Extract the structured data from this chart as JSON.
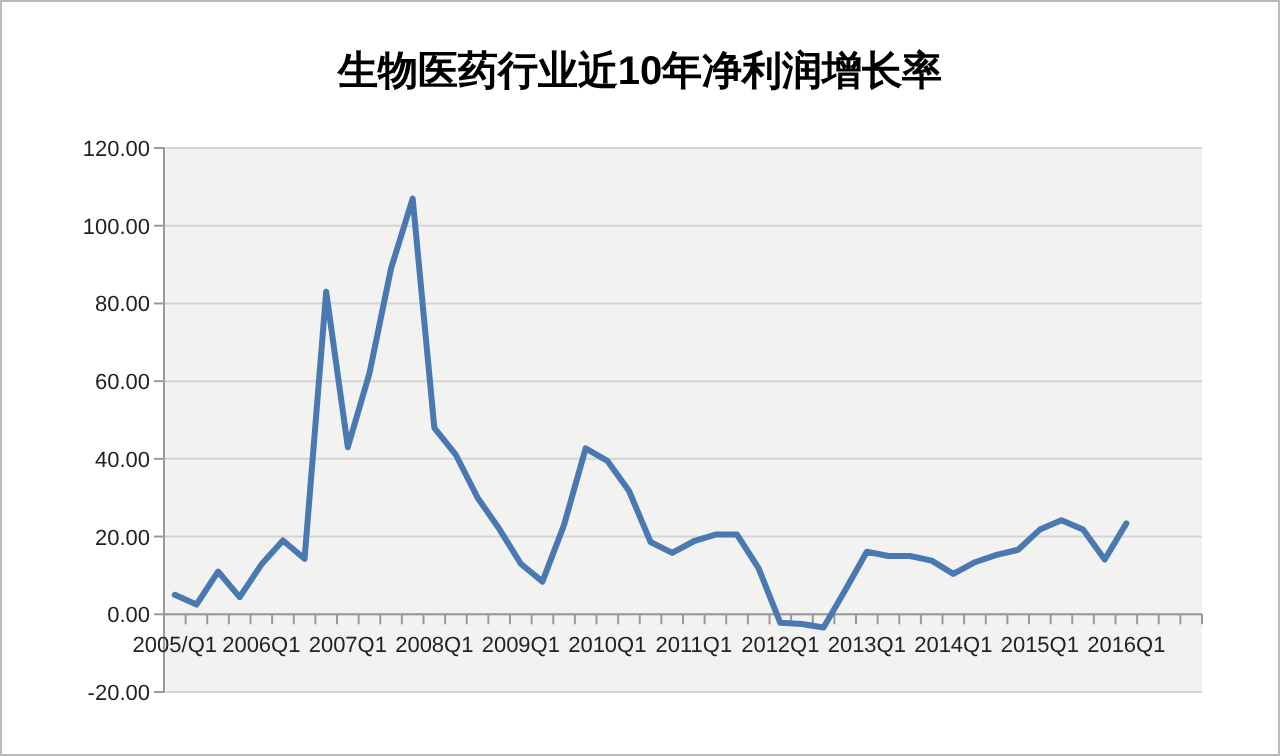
{
  "chart_data": {
    "type": "line",
    "title": "生物医药行业近10年净利润增长率",
    "categories": [
      "2005/Q1",
      null,
      null,
      null,
      "2006Q1",
      null,
      null,
      null,
      "2007Q1",
      null,
      null,
      null,
      "2008Q1",
      null,
      null,
      null,
      "2009Q1",
      null,
      null,
      null,
      "2010Q1",
      null,
      null,
      null,
      "2011Q1",
      null,
      null,
      null,
      "2012Q1",
      null,
      null,
      null,
      "2013Q1",
      null,
      null,
      null,
      "2014Q1",
      null,
      null,
      null,
      "2015Q1",
      null,
      null,
      null,
      "2016Q1",
      null,
      null,
      null
    ],
    "series": [
      {
        "color": "#4a78b0",
        "values": [
          5.0,
          2.5,
          11,
          4.4,
          12.8,
          19,
          14.3,
          83,
          43,
          62,
          89,
          107,
          48,
          41,
          30,
          22,
          13,
          8.4,
          23,
          42.7,
          39.5,
          31.8,
          18.6,
          15.8,
          18.8,
          20.5,
          20.5,
          11.8,
          -2.2,
          -2.5,
          -3.4,
          6.2,
          16.1,
          15,
          15,
          13.8,
          10.4,
          13.4,
          15.3,
          16.6,
          21.8,
          24.2,
          21.8,
          14.1,
          23.4,
          null,
          null,
          null
        ]
      }
    ],
    "ylim": [
      -20,
      120
    ],
    "yticks": [
      {
        "value": -20,
        "label": "-20.00"
      },
      {
        "value": 0,
        "label": "0.00"
      },
      {
        "value": 20,
        "label": "20.00"
      },
      {
        "value": 40,
        "label": "40.00"
      },
      {
        "value": 60,
        "label": "60.00"
      },
      {
        "value": 80,
        "label": "80.00"
      },
      {
        "value": 100,
        "label": "100.00"
      },
      {
        "value": 120,
        "label": "120.00"
      }
    ],
    "grid": "y",
    "marker": "none",
    "line_style": "solid"
  }
}
